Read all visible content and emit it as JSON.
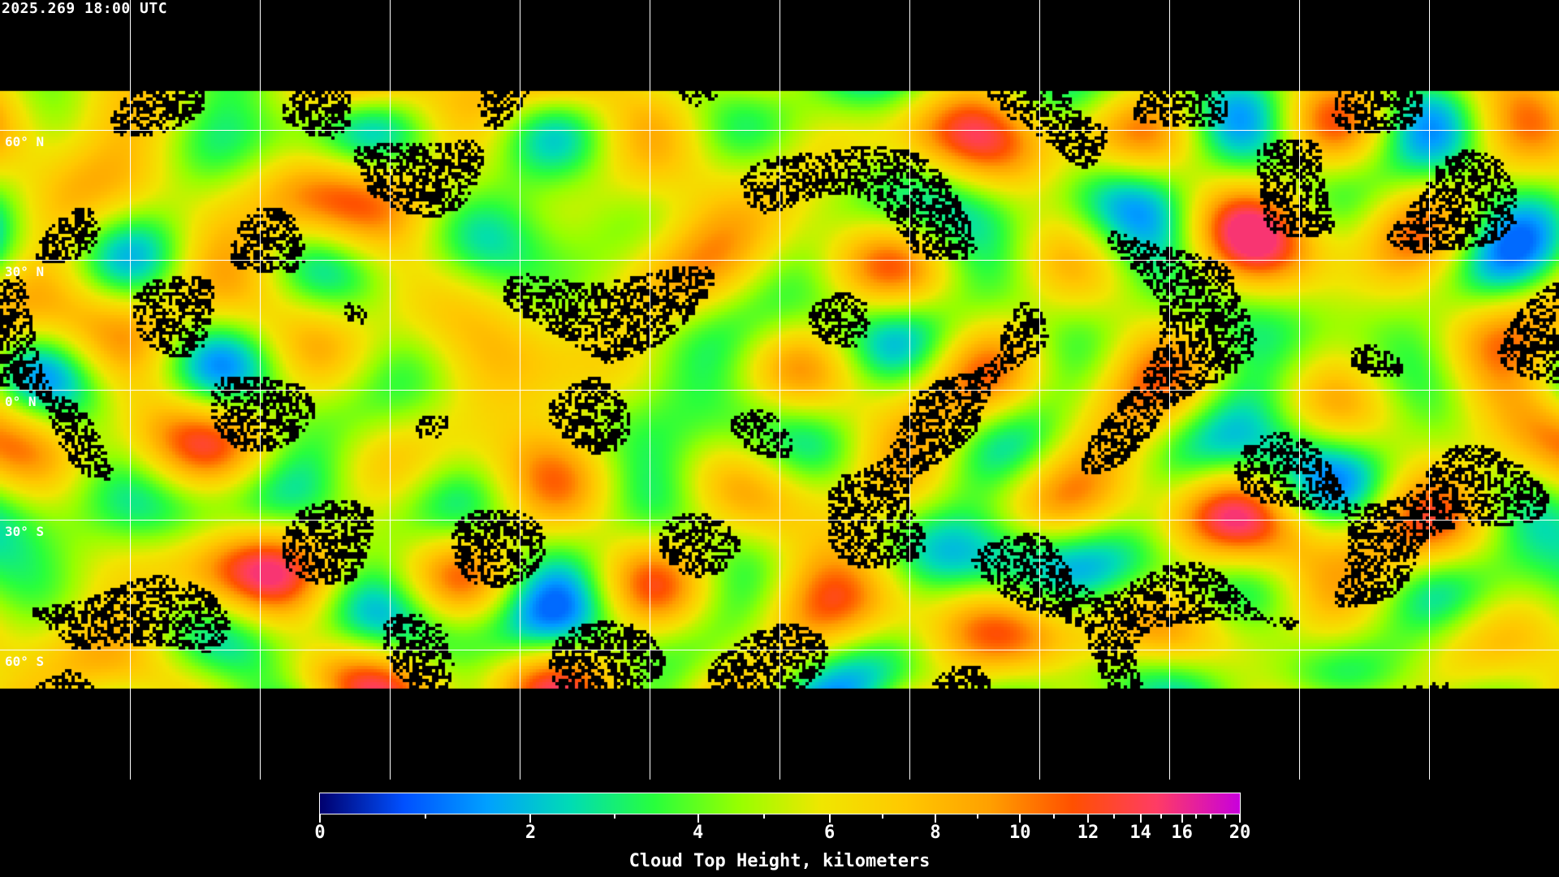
{
  "header": {
    "timestamp": "2025.269 18:00 UTC"
  },
  "map": {
    "projection": "equirectangular",
    "longitude_grid_step_deg": 30,
    "latitude_labels": [
      "60° N",
      "30° N",
      "0° N",
      "30° S",
      "60° S"
    ],
    "coastlines_color": "#ffffff",
    "no_data_color": "#000000"
  },
  "colorbar": {
    "title": "Cloud Top Height, kilometers",
    "range": [
      0,
      20
    ],
    "major_ticks": [
      {
        "value": 0,
        "label": "0"
      },
      {
        "value": 2,
        "label": "2"
      },
      {
        "value": 4,
        "label": "4"
      },
      {
        "value": 6,
        "label": "6"
      },
      {
        "value": 8,
        "label": "8"
      },
      {
        "value": 10,
        "label": "10"
      },
      {
        "value": 12,
        "label": "12"
      },
      {
        "value": 14,
        "label": "14"
      },
      {
        "value": 16,
        "label": "16"
      },
      {
        "value": 20,
        "label": "20"
      }
    ],
    "minor_ticks": [
      1,
      3,
      5,
      7,
      9,
      11,
      13,
      15,
      17,
      18,
      19
    ],
    "colors": [
      "#00006e",
      "#0050ff",
      "#00a0ff",
      "#00dcb4",
      "#28ff3c",
      "#96ff00",
      "#f0e600",
      "#ffc800",
      "#ffa000",
      "#ff5000",
      "#ff3c64",
      "#c800dc"
    ]
  }
}
